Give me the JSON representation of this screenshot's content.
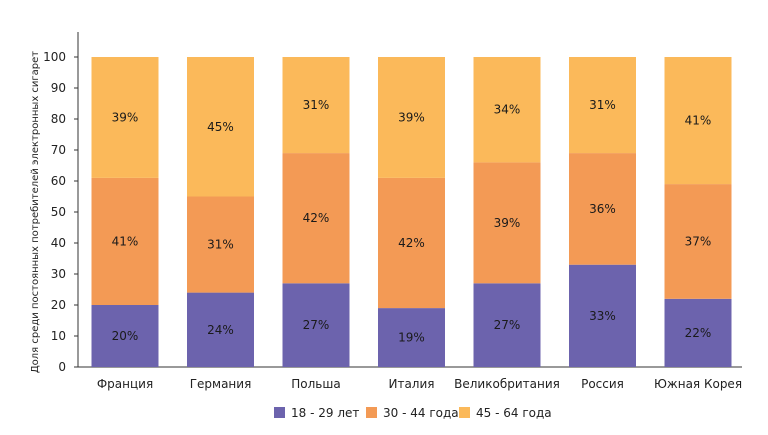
{
  "chart_data": {
    "type": "bar",
    "stacked": true,
    "ylabel": "Доля среди постоянных потребителей электронных сигарет",
    "ylim": [
      0,
      100
    ],
    "yticks": [
      0,
      10,
      20,
      30,
      40,
      50,
      60,
      70,
      80,
      90,
      100
    ],
    "categories": [
      "Франция",
      "Германия",
      "Польша",
      "Италия",
      "Великобритания",
      "Россия",
      "Южная Корея"
    ],
    "series": [
      {
        "name": "18 - 29 лет",
        "color": "#6c63ad",
        "values": [
          20,
          24,
          27,
          19,
          27,
          33,
          22
        ],
        "labels": [
          "20%",
          "24%",
          "27%",
          "19%",
          "27%",
          "33%",
          "22%"
        ]
      },
      {
        "name": "30 - 44 года",
        "color": "#f39a55",
        "values": [
          41,
          31,
          42,
          42,
          39,
          36,
          37
        ],
        "labels": [
          "41%",
          "31%",
          "42%",
          "42%",
          "39%",
          "36%",
          "37%"
        ]
      },
      {
        "name": "45 - 64 года",
        "color": "#fbb95a",
        "values": [
          39,
          45,
          31,
          39,
          34,
          31,
          41
        ],
        "labels": [
          "39%",
          "45%",
          "31%",
          "39%",
          "34%",
          "31%",
          "41%"
        ]
      }
    ],
    "legend_position": "bottom",
    "grid": false
  }
}
